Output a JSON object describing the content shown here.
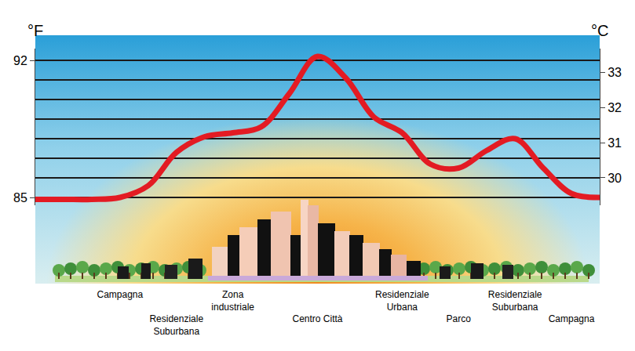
{
  "chart_data": {
    "type": "line",
    "categories": [
      null,
      null,
      null,
      "Campagna",
      null,
      "Residenziale Suburbana",
      null,
      "Zona industriale",
      null,
      null,
      "Centro Città",
      null,
      null,
      "Residenziale Urbana",
      null,
      "Parco",
      null,
      "Residenziale Suburbana",
      null,
      "Campagna",
      null
    ],
    "values": [
      84.9,
      84.9,
      84.9,
      85.0,
      85.6,
      87.3,
      88.1,
      88.3,
      88.6,
      90.3,
      92.2,
      91.1,
      89.1,
      88.3,
      86.7,
      86.5,
      87.4,
      88.0,
      86.5,
      85.2,
      85.0
    ],
    "color": "#e31b23",
    "y_label": "°F",
    "y2_label": "°C",
    "ylim": [
      84.6,
      92.6
    ],
    "yticks": [
      85,
      92
    ],
    "y2lim": [
      29.22,
      33.67
    ],
    "y2ticks": [
      30,
      31,
      32,
      33
    ],
    "grid": true
  }
}
